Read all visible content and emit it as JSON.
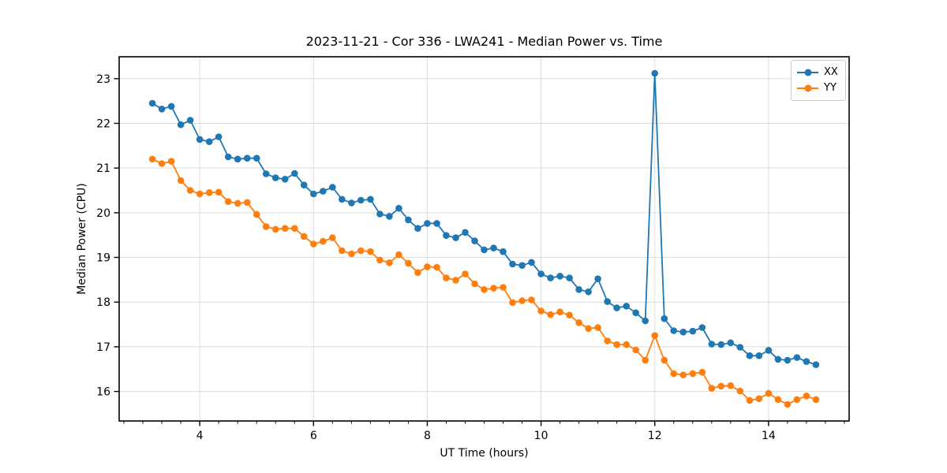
{
  "figure": {
    "background": "#ffffff",
    "spine_color": "#000000",
    "grid_color": "#dcdcdc"
  },
  "legend": {
    "position": "upper right",
    "entries": [
      {
        "label": "XX",
        "color": "#1f77b4"
      },
      {
        "label": "YY",
        "color": "#ff7f0e"
      }
    ]
  },
  "chart_data": {
    "type": "line",
    "title": "2023-11-21 - Cor 336 - LWA241 - Median Power vs. Time",
    "xlabel": "UT Time (hours)",
    "ylabel": "Median Power (CPU)",
    "xlim": [
      2.583,
      15.417
    ],
    "ylim": [
      15.34,
      23.49
    ],
    "xticks": [
      4,
      6,
      8,
      10,
      12,
      14
    ],
    "yticks": [
      16,
      17,
      18,
      19,
      20,
      21,
      22,
      23
    ],
    "x_minor_step": 0.33333,
    "grid": true,
    "legend_position": "upper right",
    "marker": "circle",
    "x": [
      3.167,
      3.333,
      3.5,
      3.667,
      3.833,
      4.0,
      4.167,
      4.333,
      4.5,
      4.667,
      4.833,
      5.0,
      5.167,
      5.333,
      5.5,
      5.667,
      5.833,
      6.0,
      6.167,
      6.333,
      6.5,
      6.667,
      6.833,
      7.0,
      7.167,
      7.333,
      7.5,
      7.667,
      7.833,
      8.0,
      8.167,
      8.333,
      8.5,
      8.667,
      8.833,
      9.0,
      9.167,
      9.333,
      9.5,
      9.667,
      9.833,
      10.0,
      10.167,
      10.333,
      10.5,
      10.667,
      10.833,
      11.0,
      11.167,
      11.333,
      11.5,
      11.667,
      11.833,
      12.0,
      12.167,
      12.333,
      12.5,
      12.667,
      12.833,
      13.0,
      13.167,
      13.333,
      13.5,
      13.667,
      13.833,
      14.0,
      14.167,
      14.333,
      14.5,
      14.667,
      14.833
    ],
    "series": [
      {
        "name": "XX",
        "color": "#1f77b4",
        "y": [
          22.45,
          22.32,
          22.38,
          21.97,
          22.07,
          21.64,
          21.59,
          21.7,
          21.25,
          21.2,
          21.22,
          21.22,
          20.87,
          20.78,
          20.75,
          20.88,
          20.62,
          20.42,
          20.48,
          20.57,
          20.3,
          20.22,
          20.28,
          20.3,
          19.97,
          19.92,
          20.1,
          19.84,
          19.65,
          19.76,
          19.76,
          19.49,
          19.44,
          19.56,
          19.37,
          19.17,
          19.21,
          19.13,
          18.85,
          18.82,
          18.89,
          18.63,
          18.54,
          18.58,
          18.54,
          18.28,
          18.23,
          18.52,
          18.01,
          17.87,
          17.91,
          17.76,
          17.58,
          23.12,
          17.63,
          17.36,
          17.33,
          17.35,
          17.43,
          17.06,
          17.05,
          17.09,
          16.99,
          16.8,
          16.8,
          16.92,
          16.72,
          16.7,
          16.76,
          16.67,
          16.6
        ]
      },
      {
        "name": "YY",
        "color": "#ff7f0e",
        "y": [
          21.2,
          21.1,
          21.15,
          20.72,
          20.5,
          20.42,
          20.45,
          20.46,
          20.25,
          20.21,
          20.23,
          19.96,
          19.69,
          19.63,
          19.65,
          19.65,
          19.47,
          19.3,
          19.36,
          19.44,
          19.15,
          19.08,
          19.15,
          19.13,
          18.94,
          18.88,
          19.06,
          18.87,
          18.66,
          18.79,
          18.78,
          18.54,
          18.49,
          18.63,
          18.41,
          18.28,
          18.31,
          18.33,
          17.99,
          18.03,
          18.05,
          17.8,
          17.72,
          17.78,
          17.71,
          17.54,
          17.41,
          17.43,
          17.13,
          17.05,
          17.05,
          16.93,
          16.7,
          17.25,
          16.7,
          16.4,
          16.37,
          16.4,
          16.43,
          16.07,
          16.12,
          16.13,
          16.01,
          15.8,
          15.84,
          15.96,
          15.82,
          15.71,
          15.82,
          15.9,
          15.82
        ]
      }
    ]
  }
}
